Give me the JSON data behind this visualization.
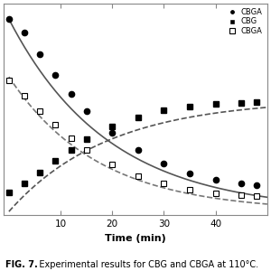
{
  "title_bold": "FIG. 7.",
  "title_rest": "   Experimental results for CBG and CBGA at 110°C.",
  "xlabel": "Time (min)",
  "x_ticks": [
    10,
    20,
    30,
    40
  ],
  "x_lim": [
    -1,
    50
  ],
  "y_lim": [
    -0.02,
    1.08
  ],
  "cbga_x": [
    0,
    3,
    6,
    9,
    12,
    15,
    20,
    25,
    30,
    35,
    40,
    45,
    48
  ],
  "cbga_y": [
    1.0,
    0.93,
    0.82,
    0.71,
    0.61,
    0.52,
    0.41,
    0.32,
    0.25,
    0.2,
    0.165,
    0.145,
    0.135
  ],
  "cbg_x": [
    0,
    3,
    6,
    9,
    12,
    15,
    20,
    25,
    30,
    35,
    40,
    45,
    48
  ],
  "cbg_y": [
    0.1,
    0.145,
    0.205,
    0.265,
    0.32,
    0.375,
    0.44,
    0.49,
    0.525,
    0.545,
    0.56,
    0.565,
    0.57
  ],
  "open_sq_x": [
    0,
    3,
    6,
    9,
    12,
    15,
    20,
    25,
    30,
    35,
    40,
    45,
    48
  ],
  "open_sq_y": [
    0.68,
    0.6,
    0.52,
    0.45,
    0.38,
    0.32,
    0.245,
    0.185,
    0.145,
    0.115,
    0.095,
    0.085,
    0.08
  ],
  "k_cbga": 0.052,
  "cbga_A": 1.0,
  "cbg_max": 0.585,
  "k_cbg": 0.052,
  "open_sq_A": 0.7,
  "k_open": 0.058,
  "legend_labels": [
    "CBGA",
    "CBG",
    "CBGA"
  ],
  "background": "#ffffff",
  "marker_size": 4.5,
  "line_width": 1.2
}
